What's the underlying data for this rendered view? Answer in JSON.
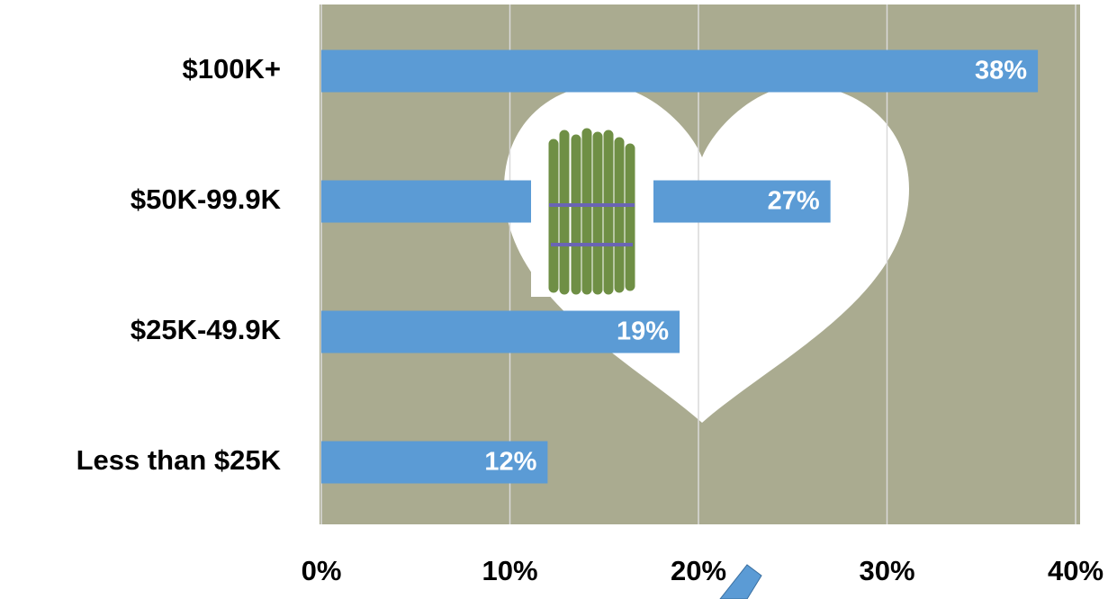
{
  "chart_data": {
    "type": "bar",
    "orientation": "horizontal",
    "categories": [
      "$100K+",
      "$50K-99.9K",
      "$25K-49.9K",
      "Less than $25K"
    ],
    "values": [
      38,
      27,
      19,
      12
    ],
    "value_labels": [
      "38%",
      "27%",
      "19%",
      "12%"
    ],
    "color": "#5b9bd5",
    "xlim": [
      0,
      40
    ],
    "xticks": [
      {
        "value": 0,
        "label": "0%"
      },
      {
        "value": 10,
        "label": "10%"
      },
      {
        "value": 20,
        "label": "20%"
      },
      {
        "value": 30,
        "label": "30%"
      },
      {
        "value": 40,
        "label": "40%"
      }
    ],
    "grid": true
  }
}
